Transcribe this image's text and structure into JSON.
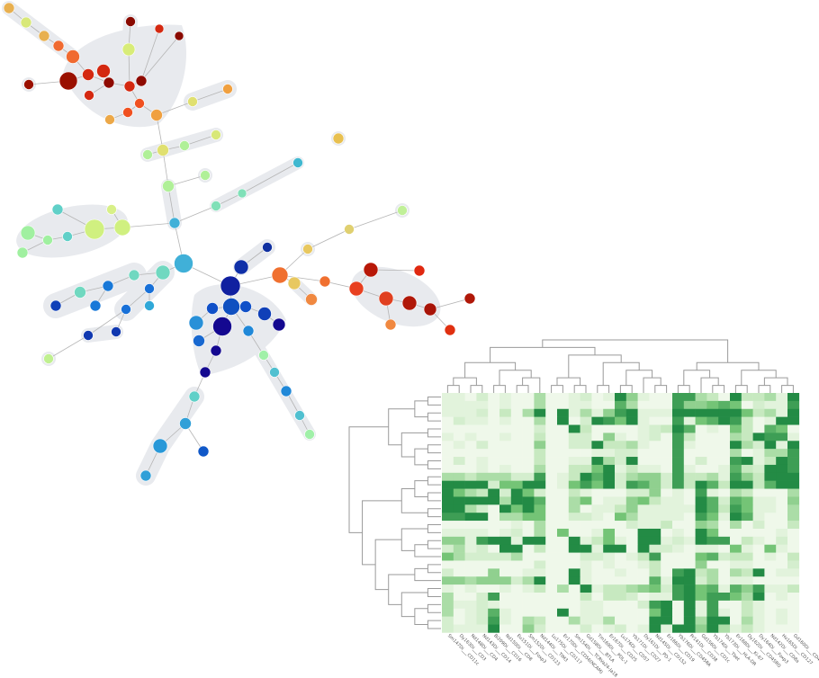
{
  "colors": {
    "hull": "#e8eaee",
    "edge": "#b5b5b5",
    "heat_low": "#eff8ea",
    "heat_mid1": "#c7e9c0",
    "heat_mid2": "#74c476",
    "heat_high": "#238b45",
    "dendrogram": "#9a9a9a"
  },
  "chart_data": [
    {
      "type": "network",
      "description_of_encoding": "minimum spanning tree of clusters, node color = marker expression, node size = cluster size"
    },
    {
      "type": "heatmap",
      "title": "",
      "row_dendrogram": true,
      "column_dendrogram": true,
      "grid": false,
      "scale": "relative expression 0 (light) to 9 (dark green)",
      "columns": [
        "Sm147Di___CD11c",
        "Dy163Di___CD3",
        "Nd148Di___CD4",
        "Nd143Di___CD14",
        "Bi209Di___CD16",
        "Nd150Di___CD8",
        "Eu151Di___Foxp3",
        "Sm152Di___CD123",
        "Nd144Di___TIM3",
        "Lu175Di___CD117",
        "Er170Di___CD56(NCAM)",
        "Sm154Di___TCRVa24-Ja18",
        "Gd158Di___BTLA",
        "Tm169Di___PDL-1",
        "Er167Di___CD25",
        "Lu176Di___CD57",
        "Yb171Di___CD27",
        "Dy161Di___PD-1",
        "Nd145Di___CD152",
        "Er166Di___CD19",
        "Yb176Di___CD45RA",
        "Pr141Di___CD38",
        "Gd156Di___CD1c",
        "Yb174Di___Tbet",
        "Yb173Di___HLA-DR",
        "Er168Di___Ki-67",
        "Dy162Di___CD45RO",
        "Dy164Di___Foxp3",
        "Nd142Di___CD8a",
        "Ho165Di___CD127",
        "Gd160Di___CD4"
      ],
      "values": [
        [
          1,
          1,
          0,
          2,
          0,
          1,
          0,
          0,
          4,
          0,
          0,
          1,
          2,
          0,
          1,
          9,
          5,
          1,
          0,
          0,
          8,
          8,
          4,
          3,
          0,
          9,
          3,
          3,
          4,
          1,
          9
        ],
        [
          1,
          1,
          1,
          1,
          0,
          1,
          0,
          0,
          4,
          0,
          0,
          1,
          1,
          0,
          0,
          7,
          4,
          0,
          0,
          0,
          8,
          5,
          5,
          6,
          7,
          6,
          0,
          2,
          1,
          1,
          8
        ],
        [
          1,
          1,
          1,
          2,
          0,
          3,
          0,
          4,
          9,
          0,
          9,
          1,
          4,
          1,
          5,
          8,
          9,
          1,
          1,
          1,
          9,
          9,
          9,
          9,
          9,
          9,
          6,
          3,
          4,
          1,
          9
        ],
        [
          0,
          2,
          1,
          1,
          0,
          1,
          0,
          0,
          4,
          0,
          9,
          0,
          2,
          9,
          8,
          6,
          9,
          1,
          0,
          0,
          8,
          1,
          6,
          7,
          9,
          8,
          3,
          0,
          1,
          9,
          9
        ],
        [
          0,
          0,
          0,
          0,
          0,
          0,
          0,
          0,
          2,
          0,
          0,
          9,
          3,
          0,
          0,
          0,
          0,
          1,
          2,
          3,
          9,
          7,
          0,
          1,
          0,
          6,
          3,
          0,
          7,
          6,
          0
        ],
        [
          1,
          0,
          1,
          0,
          0,
          1,
          0,
          0,
          3,
          0,
          0,
          2,
          2,
          0,
          5,
          1,
          0,
          1,
          2,
          0,
          8,
          3,
          0,
          0,
          0,
          4,
          3,
          9,
          8,
          8,
          1
        ],
        [
          0,
          1,
          0,
          2,
          0,
          0,
          0,
          0,
          5,
          0,
          0,
          2,
          2,
          9,
          3,
          3,
          4,
          1,
          0,
          0,
          8,
          1,
          0,
          0,
          0,
          9,
          4,
          2,
          9,
          1,
          9
        ],
        [
          0,
          0,
          0,
          0,
          0,
          0,
          0,
          0,
          3,
          0,
          0,
          0,
          0,
          1,
          1,
          2,
          2,
          0,
          0,
          0,
          8,
          0,
          0,
          0,
          0,
          4,
          0,
          1,
          4,
          4,
          8
        ],
        [
          0,
          2,
          0,
          1,
          0,
          0,
          0,
          0,
          3,
          0,
          0,
          1,
          1,
          9,
          4,
          2,
          9,
          0,
          0,
          0,
          8,
          0,
          2,
          0,
          0,
          8,
          9,
          1,
          3,
          9,
          8
        ],
        [
          0,
          0,
          0,
          1,
          0,
          1,
          0,
          0,
          4,
          0,
          0,
          3,
          3,
          6,
          9,
          1,
          3,
          1,
          1,
          0,
          8,
          1,
          0,
          0,
          1,
          7,
          3,
          2,
          9,
          9,
          8
        ],
        [
          4,
          4,
          3,
          4,
          4,
          4,
          2,
          2,
          8,
          0,
          1,
          3,
          9,
          7,
          9,
          2,
          4,
          5,
          5,
          2,
          8,
          3,
          3,
          4,
          1,
          8,
          5,
          3,
          9,
          9,
          9
        ],
        [
          9,
          9,
          9,
          9,
          2,
          6,
          6,
          9,
          9,
          0,
          1,
          6,
          8,
          6,
          9,
          2,
          8,
          7,
          5,
          2,
          8,
          3,
          9,
          7,
          3,
          9,
          9,
          3,
          7,
          9,
          9
        ],
        [
          9,
          6,
          4,
          3,
          9,
          2,
          9,
          6,
          2,
          0,
          0,
          3,
          1,
          0,
          0,
          0,
          2,
          2,
          5,
          0,
          1,
          0,
          8,
          1,
          0,
          4,
          3,
          0,
          0,
          0,
          4
        ],
        [
          9,
          9,
          9,
          9,
          9,
          4,
          9,
          9,
          7,
          0,
          0,
          4,
          6,
          0,
          1,
          1,
          5,
          6,
          3,
          1,
          1,
          0,
          9,
          7,
          2,
          7,
          6,
          1,
          1,
          0,
          5
        ],
        [
          9,
          9,
          4,
          2,
          0,
          9,
          6,
          9,
          6,
          0,
          0,
          4,
          0,
          1,
          1,
          3,
          5,
          1,
          1,
          1,
          1,
          1,
          9,
          7,
          3,
          8,
          6,
          1,
          1,
          0,
          4
        ],
        [
          8,
          8,
          9,
          9,
          0,
          4,
          4,
          6,
          6,
          0,
          0,
          2,
          2,
          1,
          0,
          6,
          4,
          1,
          1,
          1,
          1,
          0,
          8,
          6,
          1,
          9,
          7,
          1,
          0,
          0,
          4
        ],
        [
          0,
          0,
          0,
          0,
          0,
          0,
          1,
          0,
          4,
          0,
          0,
          0,
          0,
          0,
          0,
          0,
          2,
          1,
          1,
          3,
          0,
          0,
          5,
          4,
          0,
          4,
          0,
          2,
          0,
          0,
          3
        ],
        [
          1,
          1,
          1,
          1,
          0,
          1,
          2,
          0,
          4,
          0,
          6,
          0,
          0,
          1,
          6,
          0,
          0,
          9,
          9,
          0,
          1,
          0,
          9,
          6,
          0,
          0,
          0,
          0,
          0,
          1,
          0
        ],
        [
          5,
          5,
          1,
          8,
          9,
          9,
          1,
          9,
          9,
          0,
          0,
          9,
          1,
          3,
          6,
          1,
          0,
          9,
          9,
          1,
          2,
          1,
          9,
          8,
          8,
          0,
          3,
          1,
          0,
          2,
          0
        ],
        [
          2,
          4,
          1,
          2,
          0,
          9,
          9,
          0,
          3,
          0,
          0,
          9,
          9,
          1,
          9,
          9,
          0,
          9,
          2,
          2,
          1,
          0,
          1,
          1,
          0,
          6,
          1,
          0,
          6,
          1,
          0
        ],
        [
          6,
          4,
          2,
          2,
          2,
          2,
          4,
          0,
          0,
          0,
          0,
          0,
          2,
          2,
          1,
          0,
          1,
          3,
          8,
          0,
          0,
          0,
          6,
          7,
          2,
          3,
          3,
          0,
          1,
          0,
          3
        ],
        [
          0,
          0,
          0,
          0,
          0,
          0,
          0,
          0,
          2,
          0,
          0,
          0,
          1,
          0,
          1,
          0,
          0,
          1,
          3,
          0,
          0,
          0,
          5,
          0,
          0,
          1,
          1,
          0,
          0,
          0,
          2
        ],
        [
          2,
          0,
          0,
          0,
          5,
          0,
          0,
          1,
          1,
          0,
          0,
          9,
          1,
          0,
          0,
          1,
          0,
          0,
          3,
          0,
          8,
          9,
          3,
          4,
          0,
          4,
          3,
          9,
          0,
          1,
          1
        ],
        [
          5,
          5,
          4,
          5,
          5,
          5,
          2,
          4,
          9,
          0,
          0,
          9,
          1,
          0,
          0,
          0,
          0,
          0,
          7,
          1,
          9,
          9,
          2,
          4,
          0,
          1,
          1,
          0,
          0,
          0,
          0
        ],
        [
          1,
          0,
          1,
          0,
          0,
          1,
          0,
          1,
          3,
          0,
          4,
          0,
          9,
          1,
          3,
          3,
          4,
          5,
          6,
          2,
          8,
          9,
          6,
          7,
          1,
          7,
          5,
          8,
          1,
          1,
          3
        ],
        [
          4,
          0,
          0,
          2,
          8,
          0,
          0,
          0,
          0,
          0,
          0,
          0,
          3,
          0,
          3,
          3,
          2,
          0,
          1,
          1,
          8,
          9,
          6,
          8,
          8,
          6,
          4,
          9,
          0,
          1,
          0
        ],
        [
          4,
          1,
          1,
          2,
          1,
          0,
          0,
          0,
          0,
          0,
          0,
          0,
          1,
          1,
          0,
          0,
          0,
          2,
          8,
          9,
          0,
          9,
          1,
          8,
          0,
          0,
          3,
          1,
          0,
          0,
          0
        ],
        [
          4,
          0,
          1,
          2,
          7,
          1,
          0,
          0,
          0,
          0,
          9,
          0,
          1,
          1,
          0,
          0,
          0,
          0,
          6,
          9,
          0,
          9,
          1,
          8,
          1,
          0,
          3,
          1,
          0,
          1,
          0
        ],
        [
          2,
          0,
          1,
          2,
          8,
          1,
          0,
          4,
          3,
          0,
          0,
          4,
          1,
          1,
          4,
          0,
          0,
          0,
          9,
          9,
          0,
          9,
          4,
          9,
          9,
          0,
          4,
          1,
          0,
          1,
          0
        ],
        [
          2,
          1,
          1,
          1,
          9,
          0,
          0,
          5,
          2,
          0,
          0,
          0,
          2,
          0,
          1,
          2,
          0,
          1,
          9,
          1,
          9,
          9,
          5,
          9,
          4,
          1,
          3,
          1,
          0,
          0,
          0
        ]
      ]
    }
  ]
}
